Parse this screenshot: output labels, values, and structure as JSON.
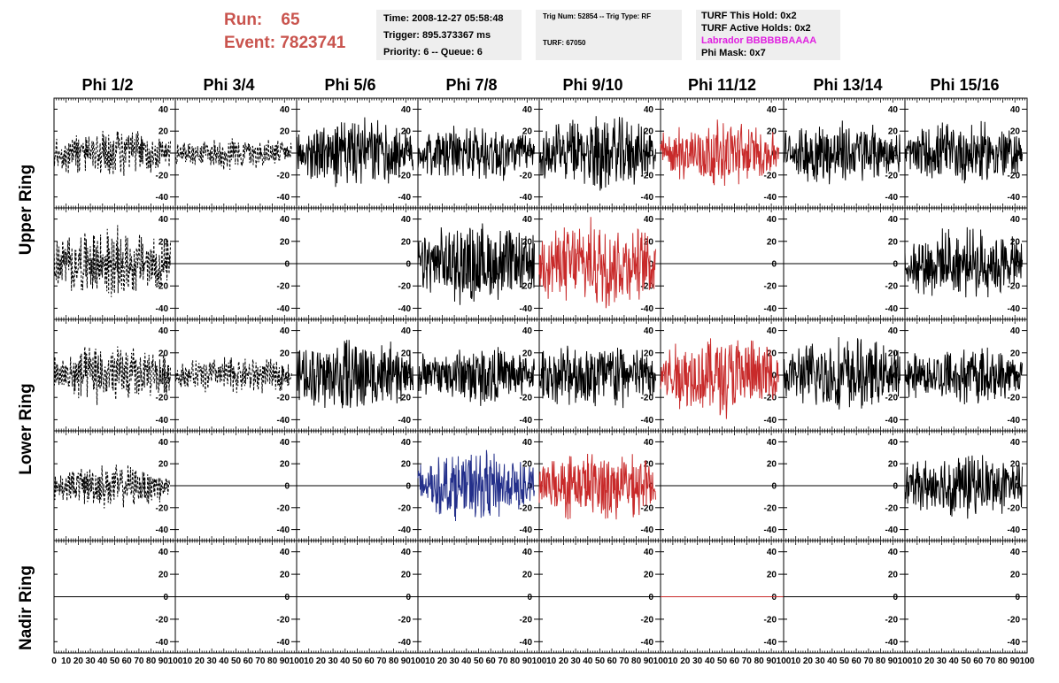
{
  "header": {
    "run_label": "Run:",
    "run_value": "65",
    "event_label": "Event:",
    "event_value": "7823741",
    "time_line": "Time: 2008-12-27 05:58:48",
    "trigger_line": "Trigger: 895.373367 ms",
    "priority_line": "Priority: 6 -- Queue: 6",
    "trig_line": "Trig Num: 52854 -- Trig Type: RF",
    "turf_line": "TURF: 67050",
    "turf_hold_line": "TURF This Hold: 0x2",
    "turf_active_line": "TURF Active Holds: 0x2",
    "labrador_line": "Labrador BBBBBBAAAA",
    "phi_mask_line": "Phi Mask: 0x7"
  },
  "columns": [
    "Phi 1/2",
    "Phi 3/4",
    "Phi 5/6",
    "Phi 7/8",
    "Phi 9/10",
    "Phi 11/12",
    "Phi 13/14",
    "Phi 15/16"
  ],
  "rings": [
    "Upper Ring",
    "Lower Ring",
    "Nadir Ring"
  ],
  "colors": {
    "red": "#c82a2a",
    "blue": "#232f8a",
    "black": "#000000",
    "title_red": "#c9544e",
    "magenta": "#e020e0"
  },
  "chart_data": {
    "type": "line",
    "xlim": [
      0,
      100
    ],
    "ylim": [
      -50,
      50
    ],
    "x_ticks": [
      0,
      10,
      20,
      30,
      40,
      50,
      60,
      70,
      80,
      90,
      100
    ],
    "y_ticks": [
      -40,
      -20,
      0,
      20,
      40
    ],
    "rows": [
      {
        "ring": "Upper Ring",
        "panels": [
          {
            "style": "dashed",
            "color": "black",
            "amp": 18
          },
          {
            "style": "dashed",
            "color": "black",
            "amp": 12
          },
          {
            "style": "solid",
            "color": "black",
            "amp": 26
          },
          {
            "style": "solid",
            "color": "black",
            "amp": 22
          },
          {
            "style": "solid",
            "color": "black",
            "amp": 28
          },
          {
            "style": "solid",
            "color": "red",
            "amp": 24
          },
          {
            "style": "solid",
            "color": "black",
            "amp": 24
          },
          {
            "style": "solid",
            "color": "black",
            "amp": 24
          }
        ]
      },
      {
        "ring": "Upper Ring",
        "panels": [
          {
            "style": "dashed",
            "color": "black",
            "amp": 26
          },
          {
            "style": "flat",
            "color": "black",
            "amp": 0
          },
          {
            "style": "flat",
            "color": "black",
            "amp": 0
          },
          {
            "style": "solid",
            "color": "black",
            "amp": 30
          },
          {
            "style": "solid",
            "color": "red",
            "amp": 32
          },
          {
            "style": "flat",
            "color": "black",
            "amp": 0
          },
          {
            "style": "flat",
            "color": "black",
            "amp": 0
          },
          {
            "style": "solid",
            "color": "black",
            "amp": 26
          }
        ]
      },
      {
        "ring": "Lower Ring",
        "panels": [
          {
            "style": "dashed",
            "color": "black",
            "amp": 22
          },
          {
            "style": "dashed",
            "color": "black",
            "amp": 14
          },
          {
            "style": "solid",
            "color": "black",
            "amp": 28
          },
          {
            "style": "solid",
            "color": "black",
            "amp": 22
          },
          {
            "style": "solid",
            "color": "black",
            "amp": 26
          },
          {
            "style": "solid",
            "color": "red",
            "amp": 30
          },
          {
            "style": "solid",
            "color": "black",
            "amp": 28
          },
          {
            "style": "solid",
            "color": "black",
            "amp": 22
          }
        ]
      },
      {
        "ring": "Lower Ring",
        "panels": [
          {
            "style": "dashed",
            "color": "black",
            "amp": 16
          },
          {
            "style": "flat",
            "color": "black",
            "amp": 0
          },
          {
            "style": "flat",
            "color": "black",
            "amp": 0
          },
          {
            "style": "solid",
            "color": "blue",
            "amp": 26
          },
          {
            "style": "solid",
            "color": "red",
            "amp": 26
          },
          {
            "style": "flat",
            "color": "black",
            "amp": 0
          },
          {
            "style": "flat",
            "color": "black",
            "amp": 0
          },
          {
            "style": "solid",
            "color": "black",
            "amp": 24
          }
        ]
      },
      {
        "ring": "Nadir Ring",
        "panels": [
          {
            "style": "flat",
            "color": "black",
            "amp": 0
          },
          {
            "style": "flat",
            "color": "black",
            "amp": 0
          },
          {
            "style": "flat",
            "color": "black",
            "amp": 0
          },
          {
            "style": "flat",
            "color": "black",
            "amp": 0
          },
          {
            "style": "flat",
            "color": "black",
            "amp": 0
          },
          {
            "style": "flat",
            "color": "red",
            "amp": 0
          },
          {
            "style": "flat",
            "color": "black",
            "amp": 0
          },
          {
            "style": "flat",
            "color": "black",
            "amp": 0
          }
        ]
      }
    ]
  }
}
